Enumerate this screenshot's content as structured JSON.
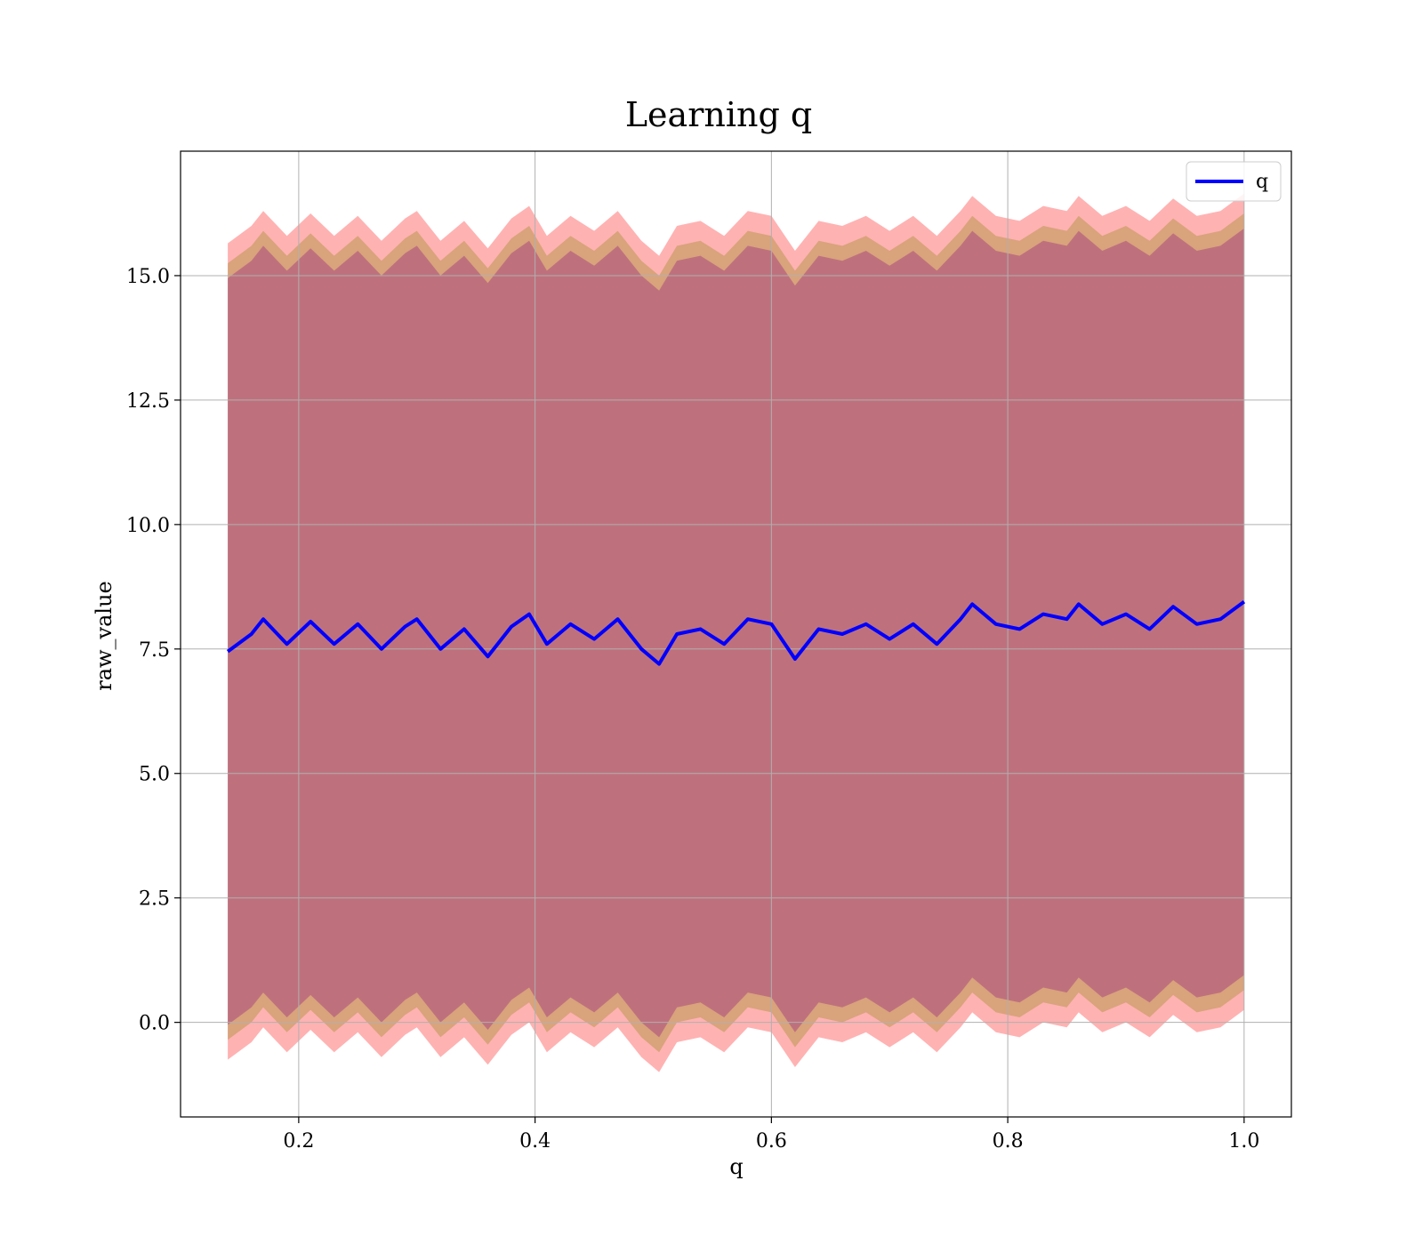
{
  "chart_data": {
    "type": "line",
    "title": "Learning q",
    "xlabel": "q",
    "ylabel": "raw_value",
    "xlim": [
      0.1,
      1.04
    ],
    "ylim": [
      -1.9,
      17.5
    ],
    "x_ticks": [
      0.2,
      0.4,
      0.6,
      0.8,
      1.0
    ],
    "x_tick_labels": [
      "0.2",
      "0.4",
      "0.6",
      "0.8",
      "1.0"
    ],
    "y_ticks": [
      0.0,
      2.5,
      5.0,
      7.5,
      10.0,
      12.5,
      15.0
    ],
    "y_tick_labels": [
      "0.0",
      "2.5",
      "5.0",
      "7.5",
      "10.0",
      "12.5",
      "15.0"
    ],
    "grid": true,
    "legend": {
      "position": "upper right",
      "entries": [
        "q"
      ]
    },
    "series": [
      {
        "name": "q",
        "color": "#0000ff",
        "x": [
          0.14,
          0.16,
          0.17,
          0.19,
          0.21,
          0.23,
          0.25,
          0.27,
          0.29,
          0.3,
          0.32,
          0.34,
          0.36,
          0.38,
          0.395,
          0.41,
          0.43,
          0.45,
          0.47,
          0.49,
          0.505,
          0.52,
          0.54,
          0.56,
          0.58,
          0.6,
          0.62,
          0.64,
          0.66,
          0.68,
          0.7,
          0.72,
          0.74,
          0.76,
          0.77,
          0.79,
          0.81,
          0.83,
          0.85,
          0.86,
          0.88,
          0.9,
          0.92,
          0.94,
          0.96,
          0.98,
          1.0
        ],
        "y": [
          7.45,
          7.8,
          8.1,
          7.6,
          8.05,
          7.6,
          8.0,
          7.5,
          7.95,
          8.1,
          7.5,
          7.9,
          7.35,
          7.95,
          8.2,
          7.6,
          8.0,
          7.7,
          8.1,
          7.5,
          7.2,
          7.8,
          7.9,
          7.6,
          8.1,
          8.0,
          7.3,
          7.9,
          7.8,
          8.0,
          7.7,
          8.0,
          7.6,
          8.1,
          8.4,
          8.0,
          7.9,
          8.2,
          8.1,
          8.4,
          8.0,
          8.2,
          7.9,
          8.35,
          8.0,
          8.1,
          8.45
        ]
      }
    ],
    "bands": [
      {
        "color": "#ff0000",
        "alpha": 0.3,
        "offset_lower": -8.2,
        "offset_upper": 8.2
      },
      {
        "color": "#808000",
        "alpha": 0.3,
        "offset_lower": -7.8,
        "offset_upper": 7.8
      },
      {
        "color": "#800080",
        "alpha": 0.3,
        "offset_lower": -7.5,
        "offset_upper": 7.5
      }
    ]
  }
}
